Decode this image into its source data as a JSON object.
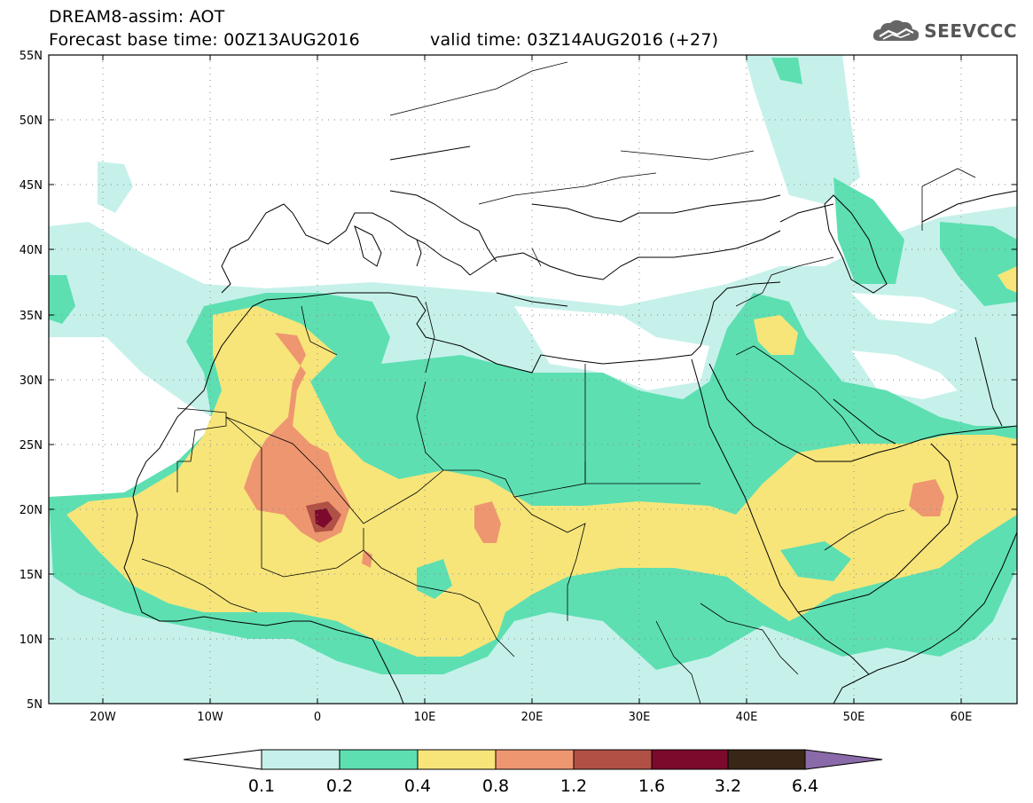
{
  "header": {
    "model_line": "DREAM8-assim: AOT",
    "base_time_line": "Forecast base time: 00Z13AUG2016",
    "valid_time_line": "valid time: 03Z14AUG2016 (+27)"
  },
  "logo": {
    "text": "SEEVCCC",
    "icon": "cloud-logo-icon"
  },
  "map": {
    "lon_ticks": [
      "20W",
      "10W",
      "0",
      "10E",
      "20E",
      "30E",
      "40E",
      "50E",
      "60E"
    ],
    "lat_ticks": [
      "55N",
      "50N",
      "45N",
      "40N",
      "35N",
      "30N",
      "25N",
      "20N",
      "15N",
      "10N",
      "5N"
    ],
    "grid": "dotted"
  },
  "colorbar": {
    "levels": [
      "0.1",
      "0.2",
      "0.4",
      "0.8",
      "1.2",
      "1.6",
      "3.2",
      "6.4"
    ],
    "colors": [
      "#ffffff",
      "#c6f1ea",
      "#5ddfb2",
      "#f7e57a",
      "#ee9670",
      "#b15045",
      "#7c0a2c",
      "#3a2616",
      "#8a6aa8"
    ]
  }
}
